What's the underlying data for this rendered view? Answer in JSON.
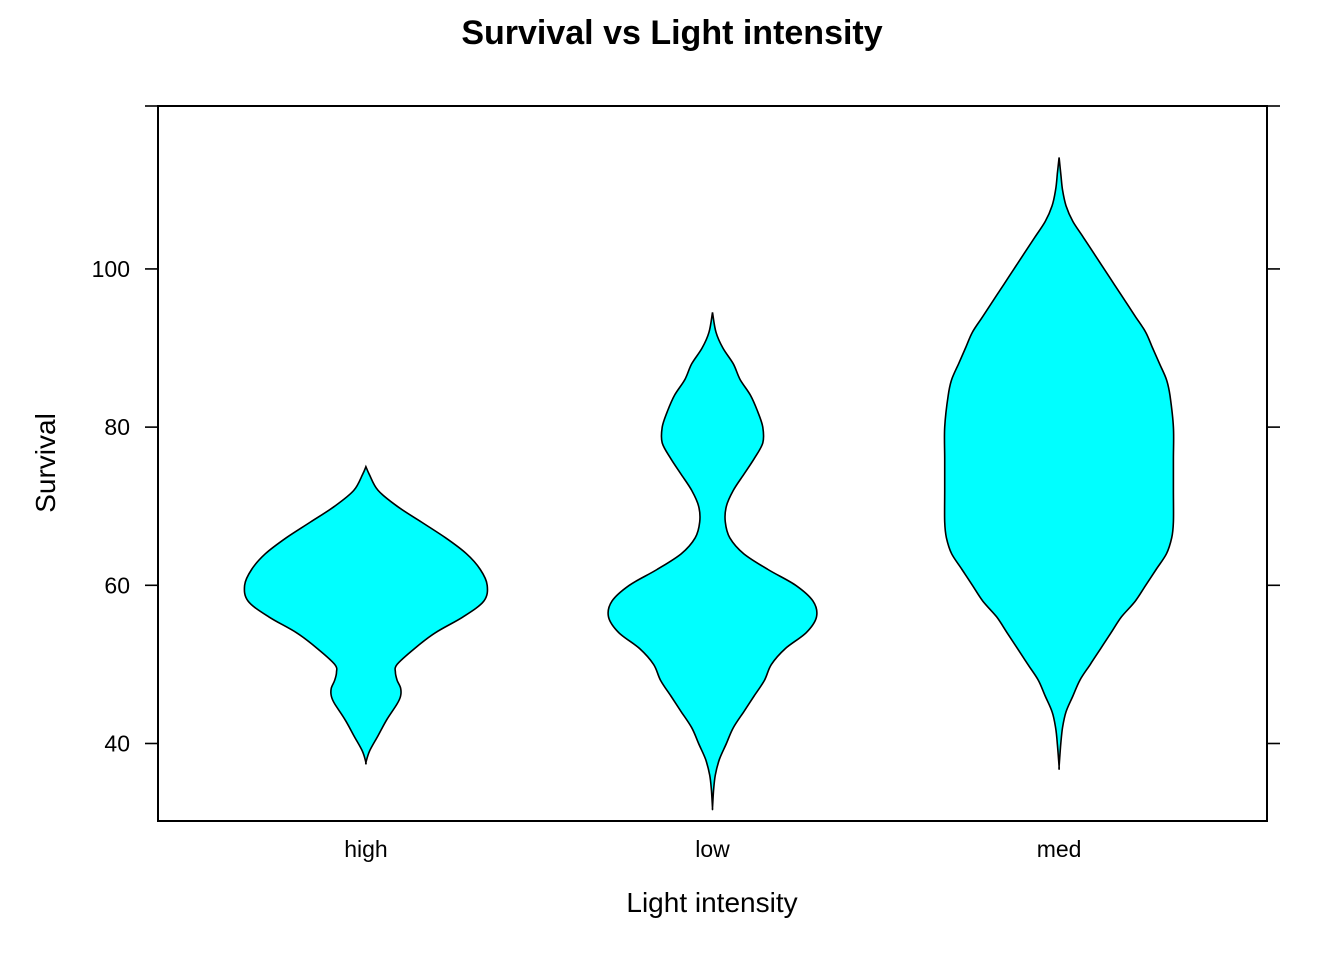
{
  "chart_data": {
    "type": "violin",
    "title": "Survival vs Light intensity",
    "xlabel": "Light intensity",
    "ylabel": "Survival",
    "categories": [
      "high",
      "low",
      "med"
    ],
    "ylim": [
      30.2,
      120.6
    ],
    "yticks": [
      40,
      60,
      80,
      100
    ],
    "fill_color": "#00FFFF",
    "stroke_color": "#000000",
    "grid": false,
    "series": [
      {
        "category": "high",
        "y_range": [
          37.6,
          75
        ],
        "density_profile": [
          [
            75,
            0.0
          ],
          [
            74,
            0.01
          ],
          [
            72,
            0.035
          ],
          [
            70,
            0.09
          ],
          [
            68,
            0.16
          ],
          [
            66,
            0.23
          ],
          [
            64,
            0.29
          ],
          [
            62,
            0.33
          ],
          [
            60,
            0.35
          ],
          [
            58,
            0.34
          ],
          [
            56,
            0.28
          ],
          [
            54,
            0.2
          ],
          [
            52,
            0.14
          ],
          [
            50,
            0.09
          ],
          [
            49,
            0.085
          ],
          [
            48,
            0.09
          ],
          [
            47,
            0.1
          ],
          [
            46,
            0.1
          ],
          [
            45,
            0.09
          ],
          [
            43,
            0.06
          ],
          [
            41,
            0.035
          ],
          [
            39,
            0.01
          ],
          [
            37.6,
            0.0
          ]
        ]
      },
      {
        "category": "low",
        "y_range": [
          31.9,
          94.5
        ],
        "density_profile": [
          [
            94.5,
            0.0
          ],
          [
            92,
            0.01
          ],
          [
            90,
            0.03
          ],
          [
            88,
            0.06
          ],
          [
            86,
            0.08
          ],
          [
            84,
            0.11
          ],
          [
            82,
            0.13
          ],
          [
            80,
            0.145
          ],
          [
            78,
            0.145
          ],
          [
            76,
            0.12
          ],
          [
            74,
            0.09
          ],
          [
            72,
            0.06
          ],
          [
            70,
            0.04
          ],
          [
            68,
            0.037
          ],
          [
            66,
            0.05
          ],
          [
            64,
            0.09
          ],
          [
            62,
            0.16
          ],
          [
            60,
            0.24
          ],
          [
            58,
            0.29
          ],
          [
            56,
            0.3
          ],
          [
            54,
            0.27
          ],
          [
            52,
            0.21
          ],
          [
            50,
            0.17
          ],
          [
            48,
            0.15
          ],
          [
            46,
            0.12
          ],
          [
            44,
            0.09
          ],
          [
            42,
            0.06
          ],
          [
            40,
            0.04
          ],
          [
            38,
            0.02
          ],
          [
            36,
            0.008
          ],
          [
            34,
            0.003
          ],
          [
            31.9,
            0.0
          ]
        ]
      },
      {
        "category": "med",
        "y_range": [
          37.1,
          114.1
        ],
        "density_profile": [
          [
            114.1,
            0.0
          ],
          [
            112,
            0.005
          ],
          [
            110,
            0.01
          ],
          [
            108,
            0.02
          ],
          [
            106,
            0.04
          ],
          [
            104,
            0.07
          ],
          [
            102,
            0.1
          ],
          [
            100,
            0.13
          ],
          [
            98,
            0.16
          ],
          [
            96,
            0.19
          ],
          [
            94,
            0.22
          ],
          [
            92,
            0.25
          ],
          [
            90,
            0.27
          ],
          [
            88,
            0.29
          ],
          [
            86,
            0.31
          ],
          [
            84,
            0.32
          ],
          [
            80,
            0.33
          ],
          [
            76,
            0.33
          ],
          [
            72,
            0.33
          ],
          [
            68,
            0.33
          ],
          [
            66,
            0.325
          ],
          [
            64,
            0.31
          ],
          [
            62,
            0.28
          ],
          [
            60,
            0.25
          ],
          [
            58,
            0.22
          ],
          [
            56,
            0.18
          ],
          [
            54,
            0.15
          ],
          [
            52,
            0.12
          ],
          [
            50,
            0.09
          ],
          [
            48,
            0.06
          ],
          [
            46,
            0.04
          ],
          [
            44,
            0.02
          ],
          [
            42,
            0.01
          ],
          [
            40,
            0.005
          ],
          [
            37.1,
            0.0
          ]
        ]
      }
    ]
  }
}
